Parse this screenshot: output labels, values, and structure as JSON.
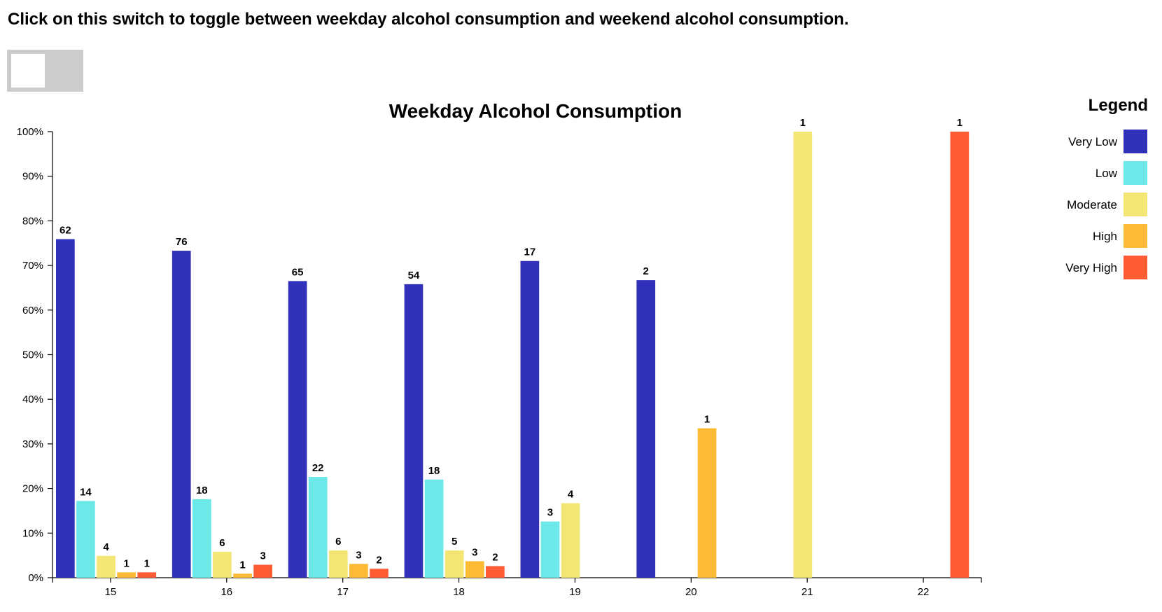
{
  "instruction": "Click on this switch to toggle between weekday alcohol consumption and weekend alcohol consumption.",
  "toggle": {
    "state": "weekday"
  },
  "legend": {
    "title": "Legend"
  },
  "chart_data": {
    "type": "bar",
    "title": "Weekday Alcohol Consumption",
    "xlabel": "",
    "ylabel": "",
    "ylim": [
      0,
      100
    ],
    "y_unit": "%",
    "y_ticks": [
      "0%",
      "10%",
      "20%",
      "30%",
      "40%",
      "50%",
      "60%",
      "70%",
      "80%",
      "90%",
      "100%"
    ],
    "grid": false,
    "legend_position": "right",
    "categories": [
      "15",
      "16",
      "17",
      "18",
      "19",
      "20",
      "21",
      "22"
    ],
    "series": [
      {
        "name": "Very Low",
        "color": "#3030b8",
        "values": [
          75.9,
          73.3,
          66.5,
          65.8,
          71.0,
          66.7,
          0,
          0
        ],
        "counts": [
          62,
          76,
          65,
          54,
          17,
          2,
          null,
          null
        ]
      },
      {
        "name": "Low",
        "color": "#6de8e8",
        "values": [
          17.2,
          17.6,
          22.6,
          22.0,
          12.6,
          0,
          0,
          0
        ],
        "counts": [
          14,
          18,
          22,
          18,
          3,
          null,
          null,
          null
        ]
      },
      {
        "name": "Moderate",
        "color": "#f3e675",
        "values": [
          4.9,
          5.8,
          6.1,
          6.1,
          16.7,
          0,
          100,
          0
        ],
        "counts": [
          4,
          6,
          6,
          5,
          4,
          null,
          1,
          null
        ]
      },
      {
        "name": "High",
        "color": "#fdbb35",
        "values": [
          1.2,
          0.9,
          3.1,
          3.7,
          0,
          33.5,
          0,
          0
        ],
        "counts": [
          1,
          1,
          3,
          3,
          null,
          1,
          null,
          null
        ]
      },
      {
        "name": "Very High",
        "color": "#ff5c35",
        "values": [
          1.2,
          2.9,
          2.0,
          2.6,
          0,
          0,
          0,
          100
        ],
        "counts": [
          1,
          3,
          2,
          2,
          null,
          null,
          null,
          1
        ]
      }
    ]
  }
}
